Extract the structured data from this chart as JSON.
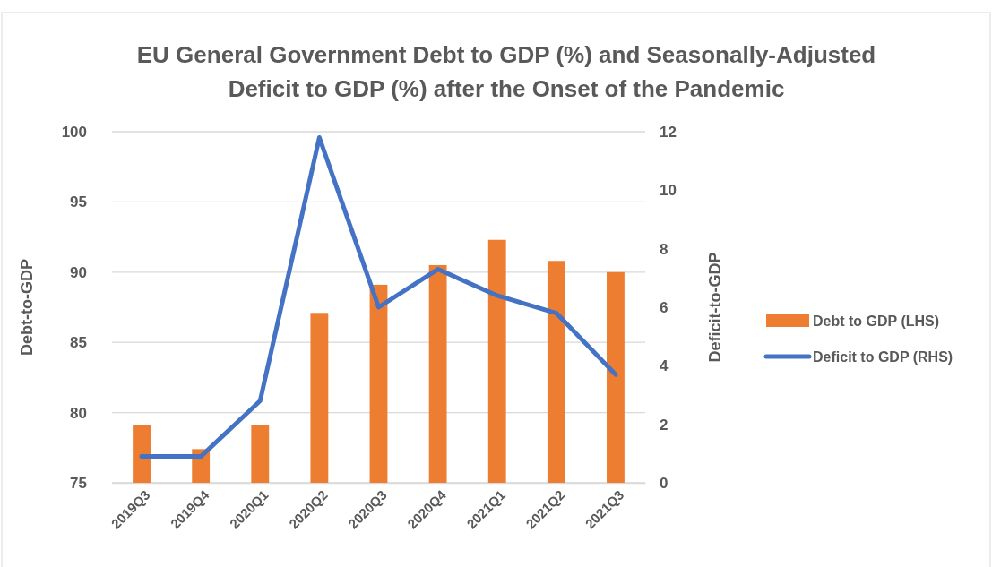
{
  "chart_data": {
    "type": "bar",
    "title": "EU General Government Debt to GDP (%) and Seasonally-Adjusted Deficit to GDP (%) after the Onset of the Pandemic",
    "ylabel": "Debt-to-GDP",
    "y2label": "Deficit-to-GDP",
    "categories": [
      "2019Q3",
      "2019Q4",
      "2020Q1",
      "2020Q2",
      "2020Q3",
      "2020Q4",
      "2021Q1",
      "2021Q2",
      "2021Q3"
    ],
    "series": [
      {
        "name": "Debt to GDP (LHS)",
        "color": "#ed7d31",
        "values": [
          79.1,
          77.4,
          79.1,
          87.1,
          89.1,
          90.5,
          92.3,
          90.8,
          90.0
        ]
      },
      {
        "name": "Deficit to GDP (RHS)",
        "type": "line",
        "axis": "y2",
        "color": "#4472c4",
        "values": [
          0.9,
          0.9,
          2.8,
          11.8,
          6.0,
          7.3,
          6.4,
          5.8,
          3.7
        ]
      }
    ],
    "ylim": [
      75,
      100
    ],
    "yticks": [
      75,
      80,
      85,
      90,
      95,
      100
    ],
    "y2lim": [
      0,
      12
    ],
    "y2ticks": [
      0,
      2,
      4,
      6,
      8,
      10,
      12
    ],
    "grid": "y",
    "legend": "right",
    "marker": "none",
    "line_style": "solid"
  }
}
